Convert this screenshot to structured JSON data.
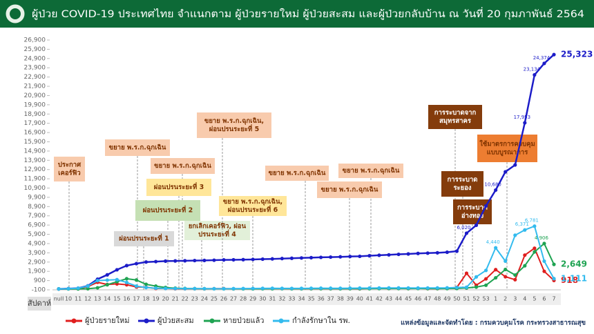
{
  "chart_data": {
    "type": "line",
    "title": "ผู้ป่วย COVID-19 ประเทศไทย จำแนกตาม ผู้ป่วยรายใหม่ ผู้ป่วยสะสม และผู้ป่วยกลับบ้าน  ณ วันที่ 20 กุมภาพันธ์ 2564",
    "x_label": "สัปดาห์",
    "source": "แหล่งข้อมูลและจัดทำโดย : กรมควบคุมโรค กระทรวงสาธารณสุข",
    "categories": [
      "null",
      "10",
      "11",
      "12",
      "13",
      "14",
      "15",
      "16",
      "17",
      "18",
      "19",
      "20",
      "21",
      "22",
      "23",
      "24",
      "25",
      "26",
      "27",
      "28",
      "29",
      "30",
      "31",
      "32",
      "33",
      "34",
      "35",
      "36",
      "37",
      "38",
      "39",
      "40",
      "41",
      "42",
      "43",
      "44",
      "45",
      "46",
      "47",
      "48",
      "49",
      "50",
      "51",
      "52",
      "53",
      "1",
      "2",
      "3",
      "4",
      "5",
      "6",
      "7"
    ],
    "ylim": [
      -100,
      26900
    ],
    "yticks": [
      -100,
      900,
      {
        "value": 1900,
        "label": "1,900"
      },
      {
        "value": 2900,
        "label": "2,900"
      },
      {
        "value": 3900,
        "label": "3,900"
      },
      {
        "value": 4900,
        "label": "4,900"
      },
      {
        "value": 5900,
        "label": "5,900"
      },
      {
        "value": 6900,
        "label": "6,900"
      },
      {
        "value": 7900,
        "label": "7,900"
      },
      {
        "value": 8900,
        "label": "8,900"
      },
      {
        "value": 9900,
        "label": "9,900"
      },
      {
        "value": 10900,
        "label": "10,900"
      },
      {
        "value": 11900,
        "label": "11,900"
      },
      {
        "value": 12900,
        "label": "12,900"
      },
      {
        "value": 13900,
        "label": "13,900"
      },
      {
        "value": 14900,
        "label": "14,900"
      },
      {
        "value": 15900,
        "label": "15,900"
      },
      {
        "value": 16900,
        "label": "16,900"
      },
      {
        "value": 17900,
        "label": "17,900"
      },
      {
        "value": 18900,
        "label": "18,900"
      },
      {
        "value": 19900,
        "label": "19,900"
      },
      {
        "value": 20900,
        "label": "20,900"
      },
      {
        "value": 21900,
        "label": "21,900"
      },
      {
        "value": 22900,
        "label": "22,900"
      },
      {
        "value": 23900,
        "label": "23,900"
      },
      {
        "value": 24900,
        "label": "24,900"
      },
      {
        "value": 25900,
        "label": "25,900"
      },
      {
        "value": 26900,
        "label": "26,900"
      }
    ],
    "series": [
      {
        "name": "ผู้ป่วยรายใหม่",
        "color": "#e01e1e",
        "values": [
          0,
          30,
          52,
          247,
          716,
          479,
          543,
          451,
          214,
          175,
          47,
          50,
          21,
          18,
          22,
          12,
          27,
          31,
          12,
          15,
          23,
          31,
          29,
          37,
          31,
          32,
          31,
          35,
          28,
          29,
          35,
          20,
          60,
          53,
          43,
          59,
          42,
          53,
          35,
          34,
          64,
          162,
          1689,
          400,
          1086,
          2082,
          1316,
          1000,
          3653,
          4400,
          1900,
          918
        ],
        "value_labels": [
          null,
          null,
          null,
          null,
          null,
          null,
          null,
          null,
          null,
          null,
          null,
          null,
          null,
          null,
          null,
          null,
          null,
          null,
          null,
          null,
          null,
          null,
          null,
          null,
          null,
          null,
          null,
          null,
          null,
          null,
          null,
          null,
          null,
          null,
          null,
          null,
          null,
          null,
          null,
          null,
          null,
          null,
          null,
          null,
          null,
          null,
          null,
          null,
          null,
          null,
          null,
          "918"
        ]
      },
      {
        "name": "ผู้ป่วยสะสม",
        "color": "#1c1cc8",
        "values": [
          0,
          30,
          82,
          329,
          1045,
          1524,
          2067,
          2518,
          2732,
          2907,
          2954,
          3004,
          3025,
          3043,
          3065,
          3077,
          3104,
          3135,
          3147,
          3162,
          3185,
          3216,
          3245,
          3282,
          3313,
          3345,
          3376,
          3411,
          3439,
          3468,
          3503,
          3523,
          3583,
          3636,
          3679,
          3738,
          3780,
          3833,
          3868,
          3902,
          3966,
          4075,
          6020,
          6884,
          8966,
          10680,
          12653,
          13400,
          17953,
          23134,
          24374,
          25323
        ],
        "value_labels": [
          null,
          null,
          null,
          null,
          null,
          null,
          null,
          null,
          null,
          null,
          null,
          null,
          null,
          null,
          null,
          null,
          null,
          null,
          null,
          null,
          null,
          null,
          null,
          null,
          null,
          null,
          null,
          null,
          null,
          null,
          null,
          null,
          null,
          null,
          null,
          null,
          null,
          null,
          null,
          null,
          null,
          null,
          "6,020",
          null,
          null,
          "10,680",
          null,
          null,
          "17,953",
          "23,134",
          "24,374",
          "25,323"
        ]
      },
      {
        "name": "หายป่วยแล้ว",
        "color": "#1fa352",
        "values": [
          0,
          0,
          1,
          17,
          120,
          450,
          780,
          1100,
          964,
          500,
          300,
          150,
          80,
          50,
          30,
          20,
          15,
          12,
          10,
          10,
          12,
          15,
          20,
          25,
          20,
          22,
          25,
          30,
          25,
          20,
          28,
          25,
          30,
          40,
          45,
          42,
          40,
          45,
          40,
          35,
          40,
          50,
          100,
          200,
          400,
          1200,
          2100,
          1500,
          2500,
          4000,
          4906,
          2649
        ],
        "value_labels": [
          null,
          null,
          null,
          null,
          null,
          null,
          null,
          null,
          null,
          null,
          null,
          null,
          null,
          null,
          null,
          null,
          null,
          null,
          null,
          null,
          null,
          null,
          null,
          null,
          null,
          null,
          null,
          null,
          null,
          null,
          null,
          null,
          null,
          null,
          null,
          null,
          null,
          null,
          null,
          null,
          null,
          null,
          null,
          null,
          null,
          null,
          null,
          null,
          null,
          null,
          "4,906",
          "2,649"
        ]
      },
      {
        "name": "กำลังรักษาใน รพ.",
        "color": "#33bbee",
        "values": [
          0,
          30,
          80,
          300,
          900,
          950,
          1000,
          700,
          300,
          150,
          80,
          50,
          40,
          30,
          30,
          25,
          20,
          20,
          30,
          40,
          50,
          60,
          70,
          60,
          55,
          60,
          70,
          80,
          75,
          70,
          80,
          85,
          90,
          100,
          110,
          105,
          100,
          95,
          100,
          110,
          120,
          150,
          180,
          1300,
          2000,
          4440,
          3000,
          5800,
          6371,
          6781,
          3000,
          1111
        ],
        "value_labels": [
          null,
          null,
          null,
          null,
          null,
          null,
          null,
          null,
          null,
          null,
          null,
          null,
          null,
          null,
          null,
          null,
          null,
          null,
          null,
          null,
          null,
          null,
          null,
          null,
          null,
          null,
          null,
          null,
          null,
          null,
          null,
          null,
          null,
          null,
          null,
          null,
          null,
          null,
          null,
          null,
          null,
          null,
          null,
          null,
          null,
          "4,440",
          null,
          null,
          "6,371",
          "6,781",
          null,
          "1,111"
        ]
      }
    ],
    "annotations": [
      {
        "lines": [
          "ประกาศ",
          "เคอร์ฟิว"
        ],
        "color": "#f8cbad"
      },
      {
        "lines": [
          "ขยาย พ.ร.ก.ฉุกเฉิน"
        ],
        "color": "#f8cbad"
      },
      {
        "lines": [
          "ขยาย พ.ร.ก.ฉุกเฉิน"
        ],
        "color": "#f8cbad"
      },
      {
        "lines": [
          "ผ่อนปรนระยะที่ 3"
        ],
        "color": "#ffe699"
      },
      {
        "lines": [
          "ผ่อนปรนระยะที่ 2"
        ],
        "color": "#c5e0b4"
      },
      {
        "lines": [
          "ผ่อนปรนระยะที่ 1"
        ],
        "color": "#d9d9d9"
      },
      {
        "lines": [
          "ยกเลิกเคอร์ฟิว, ผ่อน",
          "ปรนระยะที่ 4"
        ],
        "color": "#e2f0d9"
      },
      {
        "lines": [
          "ขยาย พ.ร.ก.ฉุกเฉิน,",
          "ผ่อนปรนระยะที่ 5"
        ],
        "color": "#f8cbad"
      },
      {
        "lines": [
          "ขยาย พ.ร.ก.ฉุกเฉิน,",
          "ผ่อนปรนระยะที่ 6"
        ],
        "color": "#ffe699"
      },
      {
        "lines": [
          "ขยาย พ.ร.ก.ฉุกเฉิน"
        ],
        "color": "#f8cbad"
      },
      {
        "lines": [
          "ขยาย พ.ร.ก.ฉุกเฉิน"
        ],
        "color": "#f8cbad"
      },
      {
        "lines": [
          "ขยาย พ.ร.ก.ฉุกเฉิน"
        ],
        "color": "#f8cbad"
      },
      {
        "lines": [
          "การระบาดจาก",
          "สมุทรสาคร"
        ],
        "color": "#843c0c"
      },
      {
        "lines": [
          "ใช้มาตรการควบคุม",
          "แบบบูรณาการ"
        ],
        "color": "#ed7d31"
      },
      {
        "lines": [
          "การระบาด",
          "ระยอง"
        ],
        "color": "#843c0c"
      },
      {
        "lines": [
          "การระบาด",
          "อ่างทอง"
        ],
        "color": "#843c0c"
      }
    ]
  }
}
